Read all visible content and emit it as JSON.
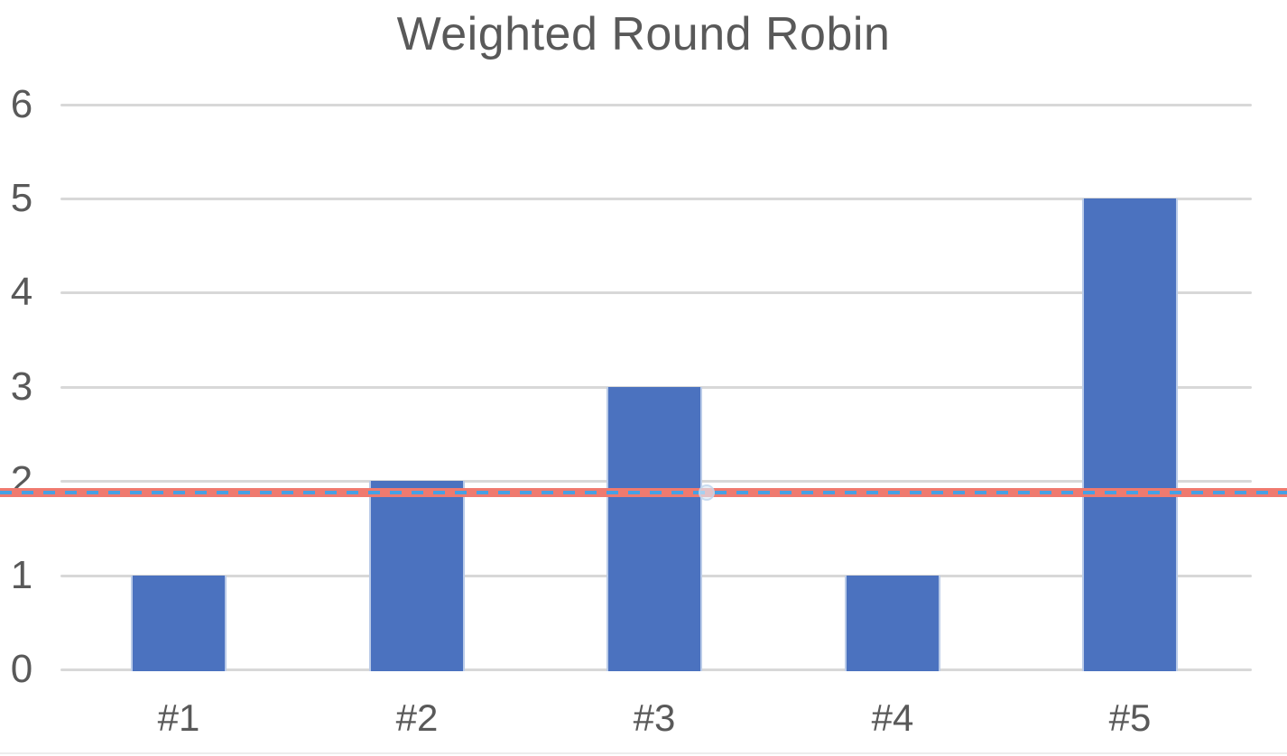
{
  "title": "Weighted Round Robin",
  "colors": {
    "bar": "#4b72bf",
    "gridline": "#d8d8d8",
    "text": "#595959",
    "reference_line": "#ef7a6f",
    "reference_dash": "#47a0e4",
    "marker_fill": "rgba(219,233,246,0.65)"
  },
  "chart_data": {
    "type": "bar",
    "title": "Weighted Round Robin",
    "categories": [
      "#1",
      "#2",
      "#3",
      "#4",
      "#5"
    ],
    "values": [
      1,
      2,
      3,
      1,
      5
    ],
    "xlabel": "",
    "ylabel": "",
    "ylim": [
      0,
      6
    ],
    "yticks": [
      0,
      1,
      2,
      3,
      4,
      5,
      6
    ],
    "grid": "horizontal",
    "legend": "none",
    "bar_color": "#4b72bf",
    "reference_line": {
      "value": 1.88,
      "color": "#ef7a6f",
      "overlay_dash_color": "#47a0e4",
      "spans_full_width": true,
      "marker_at": {
        "category": "#3",
        "edge": "right"
      }
    }
  }
}
